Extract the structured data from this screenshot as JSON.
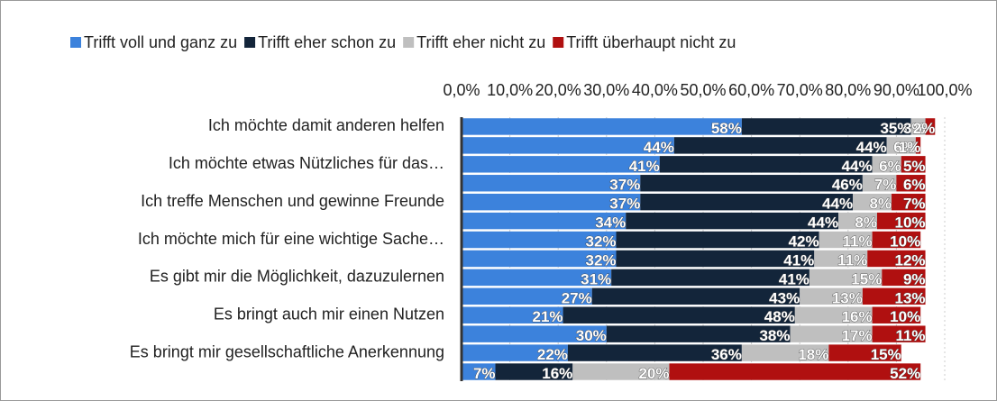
{
  "chart_data": {
    "type": "stacked-bar-horizontal",
    "categories": [
      "Ich möchte damit anderen helfen",
      null,
      "Ich möchte etwas Nützliches für das…",
      null,
      "Ich treffe Menschen und gewinne Freunde",
      null,
      "Ich möchte mich für eine wichtige Sache…",
      null,
      "Es gibt mir die Möglichkeit, dazuzulernen",
      null,
      "Es bringt auch mir einen Nutzen",
      null,
      "Es bringt mir gesellschaftliche Anerkennung",
      null
    ],
    "series": [
      {
        "name": "Trifft voll und ganz zu",
        "color": "#3c82dc",
        "values": [
          58,
          44,
          41,
          37,
          37,
          34,
          32,
          32,
          31,
          27,
          21,
          30,
          22,
          7
        ],
        "value_labels": [
          "58%",
          "44%",
          "41%",
          "37%",
          "37%",
          "34%",
          "32%",
          "32%",
          "31%",
          "27%",
          "21%",
          "30%",
          "22%",
          "7%"
        ]
      },
      {
        "name": "Trifft eher schon zu",
        "color": "#13253a",
        "values": [
          35,
          44,
          44,
          46,
          44,
          44,
          42,
          41,
          41,
          43,
          48,
          38,
          36,
          16
        ],
        "value_labels": [
          "35%",
          "44%",
          "44%",
          "46%",
          "44%",
          "44%",
          "42%",
          "41%",
          "41%",
          "43%",
          "48%",
          "38%",
          "36%",
          "16%"
        ]
      },
      {
        "name": "Trifft eher nicht zu",
        "color": "#bfbfbf",
        "values": [
          3,
          6,
          6,
          7,
          8,
          8,
          11,
          11,
          15,
          13,
          16,
          17,
          18,
          20
        ],
        "value_labels": [
          "3%",
          "6%",
          "6%",
          "7%",
          "8%",
          "8%",
          "11%",
          "11%",
          "15%",
          "13%",
          "16%",
          "17%",
          "18%",
          "20%"
        ]
      },
      {
        "name": "Trifft überhaupt nicht zu",
        "color": "#b01010",
        "values": [
          2,
          1,
          5,
          6,
          7,
          10,
          10,
          12,
          9,
          13,
          10,
          11,
          15,
          52
        ],
        "value_labels": [
          "2%",
          "1%",
          "5%",
          "6%",
          "7%",
          "10%",
          "10%",
          "12%",
          "9%",
          "13%",
          "10%",
          "11%",
          "15%",
          "52%"
        ]
      }
    ],
    "xlim": [
      0,
      100
    ],
    "xticks": [
      {
        "value": 0,
        "label": "0,0%"
      },
      {
        "value": 10,
        "label": "10,0%"
      },
      {
        "value": 20,
        "label": "20,0%"
      },
      {
        "value": 30,
        "label": "30,0%"
      },
      {
        "value": 40,
        "label": "40,0%"
      },
      {
        "value": 50,
        "label": "50,0%"
      },
      {
        "value": 60,
        "label": "60,0%"
      },
      {
        "value": 70,
        "label": "70,0%"
      },
      {
        "value": 80,
        "label": "80,0%"
      },
      {
        "value": 90,
        "label": "90,0%"
      },
      {
        "value": 100,
        "label": "100,0%"
      }
    ],
    "grid": true,
    "legend": "top"
  }
}
